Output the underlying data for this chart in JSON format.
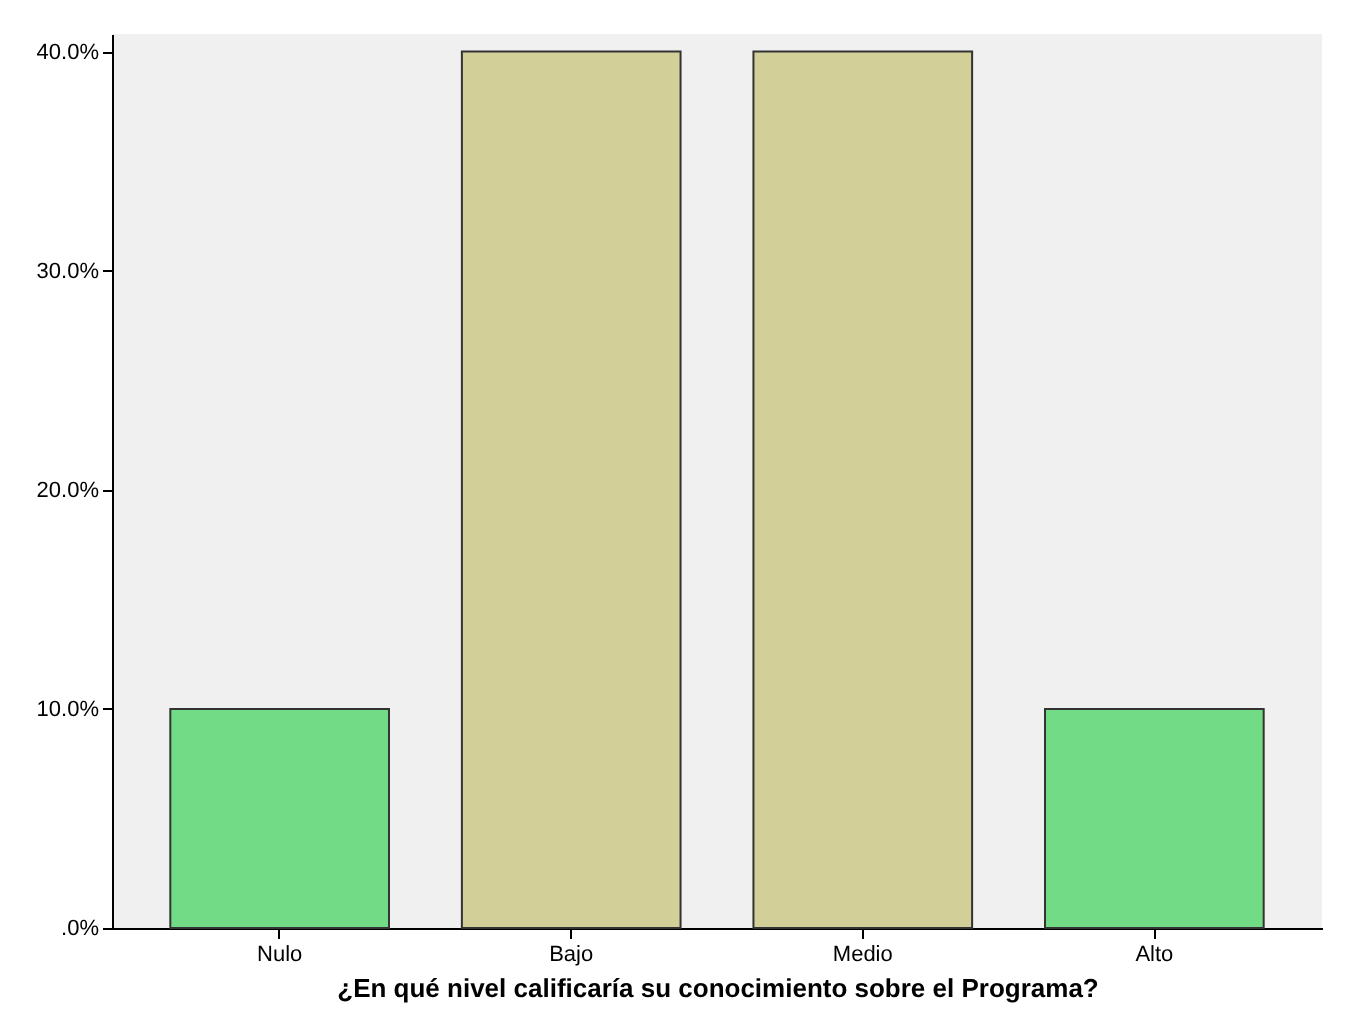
{
  "chart_data": {
    "type": "bar",
    "xlabel": "¿En qué nivel calificaría su conocimiento sobre el Programa?",
    "categories": [
      "Nulo",
      "Bajo",
      "Medio",
      "Alto"
    ],
    "values": [
      10,
      40,
      40,
      10
    ],
    "colors": [
      "#71dc85",
      "#d3cf98",
      "#d3cf98",
      "#71dc85"
    ],
    "ylim": [
      0,
      40.8
    ],
    "yticks": [
      {
        "value": 0,
        "label": ".0%"
      },
      {
        "value": 10,
        "label": "10.0%"
      },
      {
        "value": 20,
        "label": "20.0%"
      },
      {
        "value": 30,
        "label": "30.0%"
      },
      {
        "value": 40,
        "label": "40.0%"
      }
    ],
    "grid": false
  }
}
